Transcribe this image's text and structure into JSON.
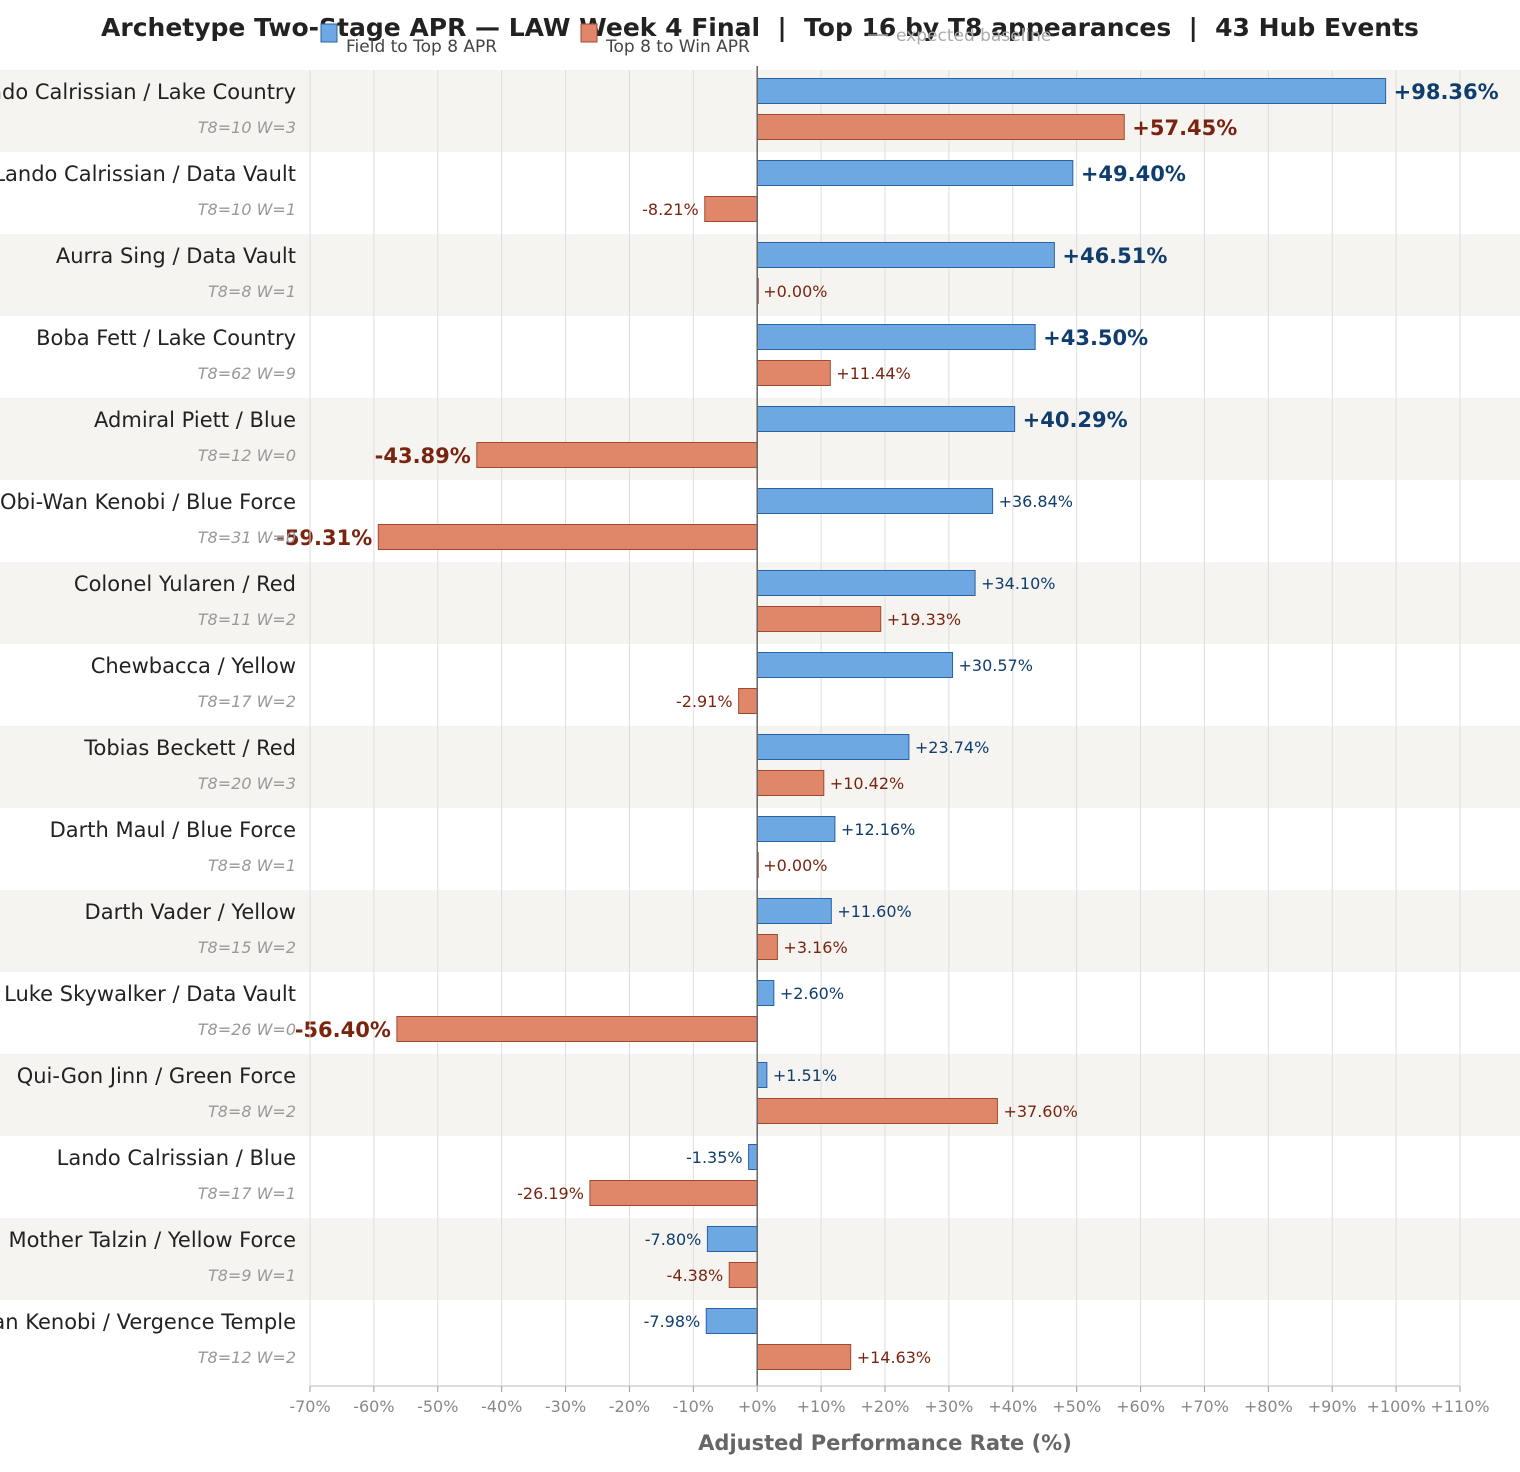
{
  "chart_data": {
    "type": "bar",
    "orientation": "horizontal",
    "title": "Archetype Two-Stage APR — LAW Week 4 Final  |  Top 16 by T8 appearances  |  43 Hub Events",
    "xlabel": "Adjusted Performance Rate (%)",
    "xlim": [
      -70,
      110
    ],
    "x_ticks": [
      -70,
      -60,
      -50,
      -40,
      -30,
      -20,
      -10,
      0,
      10,
      20,
      30,
      40,
      50,
      60,
      70,
      80,
      90,
      100,
      110
    ],
    "x_tick_labels": [
      "-70%",
      "-60%",
      "-50%",
      "-40%",
      "-30%",
      "-20%",
      "-10%",
      "+0%",
      "+10%",
      "+20%",
      "+30%",
      "+40%",
      "+50%",
      "+60%",
      "+70%",
      "+80%",
      "+90%",
      "+100%",
      "+110%"
    ],
    "legend": {
      "placement": "top-center",
      "entries": [
        "Field to Top 8 APR",
        "Top 8 to Win APR",
        "expected baseline"
      ]
    },
    "colors": {
      "field_to_top8": "#6ea8e2",
      "field_to_top8_edge": "#2a62a6",
      "field_to_top8_label": "#0f3d6e",
      "top8_to_win": "#e0876a",
      "top8_to_win_edge": "#a04a2c",
      "top8_to_win_label": "#7a2410",
      "band": "#f5f4f0",
      "grid": "#dddddd",
      "baseline": "#666666"
    },
    "categories": [
      "Lando Calrissian / Lake Country",
      "Lando Calrissian / Data Vault",
      "Aurra Sing / Data Vault",
      "Boba Fett / Lake Country",
      "Admiral Piett / Blue",
      "Obi-Wan Kenobi / Blue Force",
      "Colonel Yularen / Red",
      "Chewbacca / Yellow",
      "Tobias Beckett / Red",
      "Darth Maul / Blue Force",
      "Darth Vader / Yellow",
      "Luke Skywalker / Data Vault",
      "Qui-Gon Jinn / Green Force",
      "Lando Calrissian / Blue",
      "Mother Talzin / Yellow Force",
      "Obi-Wan Kenobi / Vergence Temple"
    ],
    "sublabels": [
      "T8=10  W=3",
      "T8=10  W=1",
      "T8=8  W=1",
      "T8=62  W=9",
      "T8=12  W=0",
      "T8=31  W=0",
      "T8=11  W=2",
      "T8=17  W=2",
      "T8=20  W=3",
      "T8=8  W=1",
      "T8=15  W=2",
      "T8=26  W=0",
      "T8=8  W=2",
      "T8=17  W=1",
      "T8=9  W=1",
      "T8=12  W=2"
    ],
    "series": [
      {
        "name": "Field to Top 8 APR",
        "values": [
          98.36,
          49.4,
          46.51,
          43.5,
          40.29,
          36.84,
          34.1,
          30.57,
          23.74,
          12.16,
          11.6,
          2.6,
          1.51,
          -1.35,
          -7.8,
          -7.98
        ],
        "labels": [
          "+98.36%",
          "+49.40%",
          "+46.51%",
          "+43.50%",
          "+40.29%",
          "+36.84%",
          "+34.10%",
          "+30.57%",
          "+23.74%",
          "+12.16%",
          "+11.60%",
          "+2.60%",
          "+1.51%",
          "-1.35%",
          "-7.80%",
          "-7.98%"
        ]
      },
      {
        "name": "Top 8 to Win APR",
        "values": [
          57.45,
          -8.21,
          0.0,
          11.44,
          -43.89,
          -59.31,
          19.33,
          -2.91,
          10.42,
          0.0,
          3.16,
          -56.4,
          37.6,
          -26.19,
          -4.38,
          14.63
        ],
        "labels": [
          "+57.45%",
          "-8.21%",
          "+0.00%",
          "+11.44%",
          "-43.89%",
          "-59.31%",
          "+19.33%",
          "-2.91%",
          "+10.42%",
          "+0.00%",
          "+3.16%",
          "-56.40%",
          "+37.60%",
          "-26.19%",
          "-4.38%",
          "+14.63%"
        ]
      }
    ]
  }
}
